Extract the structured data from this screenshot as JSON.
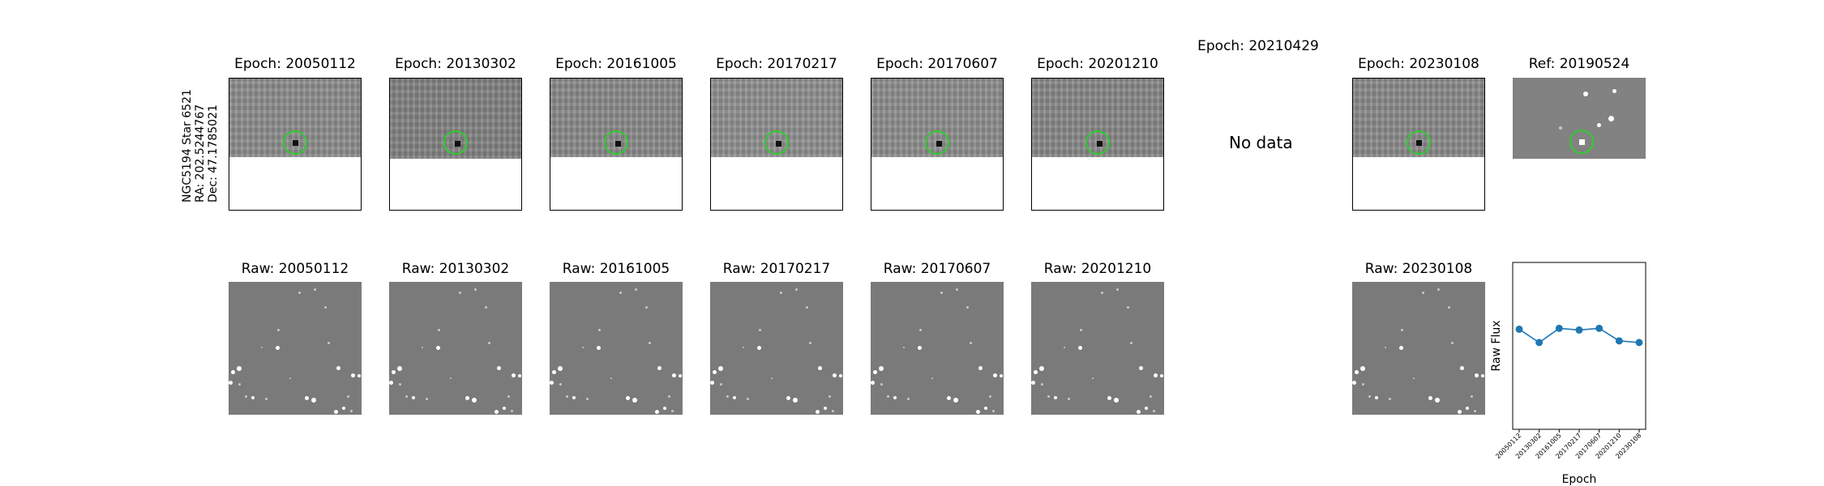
{
  "star_info": {
    "name": "NGC5194 Star 6521",
    "ra": "RA: 202.5244767",
    "dec": "Dec: 47.1785021"
  },
  "epoch_titles": [
    "Epoch: 20050112",
    "Epoch: 20130302",
    "Epoch: 20161005",
    "Epoch: 20170217",
    "Epoch: 20170607",
    "Epoch: 20201210",
    "Epoch: 20210429",
    "Epoch: 20230108",
    "Ref: 20190524"
  ],
  "no_data_text": "No data",
  "raw_titles": [
    "Raw: 20050112",
    "Raw: 20130302",
    "Raw: 20161005",
    "Raw: 20170217",
    "Raw: 20170607",
    "Raw: 20201210",
    "Raw: 20230108"
  ],
  "colors": {
    "marker": "#1f77b4",
    "circle": "#2ecc2e"
  },
  "chart_data": {
    "type": "line",
    "title": "",
    "xlabel": "Epoch",
    "ylabel": "Raw Flux",
    "x": [
      "20050112",
      "20130302",
      "20161005",
      "20170217",
      "20170607",
      "20201210",
      "20230108"
    ],
    "series": [
      {
        "values": [
          0.6,
          0.52,
          0.605,
          0.595,
          0.605,
          0.53,
          0.52
        ]
      }
    ],
    "ylim": [
      0,
      1
    ],
    "grid": false
  }
}
